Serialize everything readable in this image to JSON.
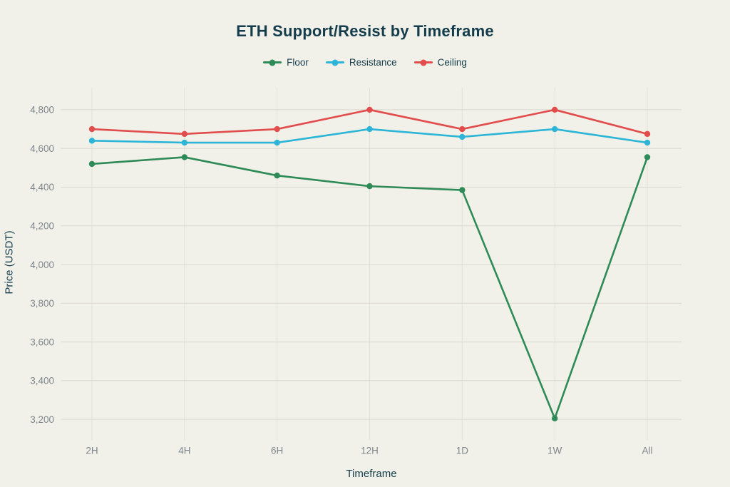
{
  "title": "ETH Support/Resist by Timeframe",
  "axes": {
    "x_label": "Timeframe",
    "y_label": "Price (USDT)"
  },
  "chart_data": {
    "type": "line",
    "title": "ETH Support/Resist by Timeframe",
    "xlabel": "Timeframe",
    "ylabel": "Price (USDT)",
    "categories": [
      "2H",
      "4H",
      "6H",
      "12H",
      "1D",
      "1W",
      "All"
    ],
    "series": [
      {
        "name": "Floor",
        "color": "#2e8b57",
        "values": [
          4520,
          4555,
          4460,
          4405,
          4385,
          3205,
          4555
        ]
      },
      {
        "name": "Resistance",
        "color": "#2cb5d6",
        "values": [
          4640,
          4630,
          4630,
          4700,
          4660,
          4700,
          4630
        ]
      },
      {
        "name": "Ceiling",
        "color": "#e14d4d",
        "values": [
          4700,
          4675,
          4700,
          4800,
          4700,
          4800,
          4675
        ]
      }
    ],
    "yticks": [
      3200,
      3400,
      3600,
      3800,
      4000,
      4200,
      4400,
      4600,
      4800
    ],
    "ylim": [
      3112,
      4914
    ],
    "grid": true,
    "legend_position": "top-center",
    "marker": "circle"
  },
  "colors": {
    "background": "#f2f1e9",
    "grid_horizontal": "#d9d8d0",
    "grid_vertical": "#e2e1d9",
    "text_dark": "#143c4b",
    "tick_label": "#7d868c"
  }
}
